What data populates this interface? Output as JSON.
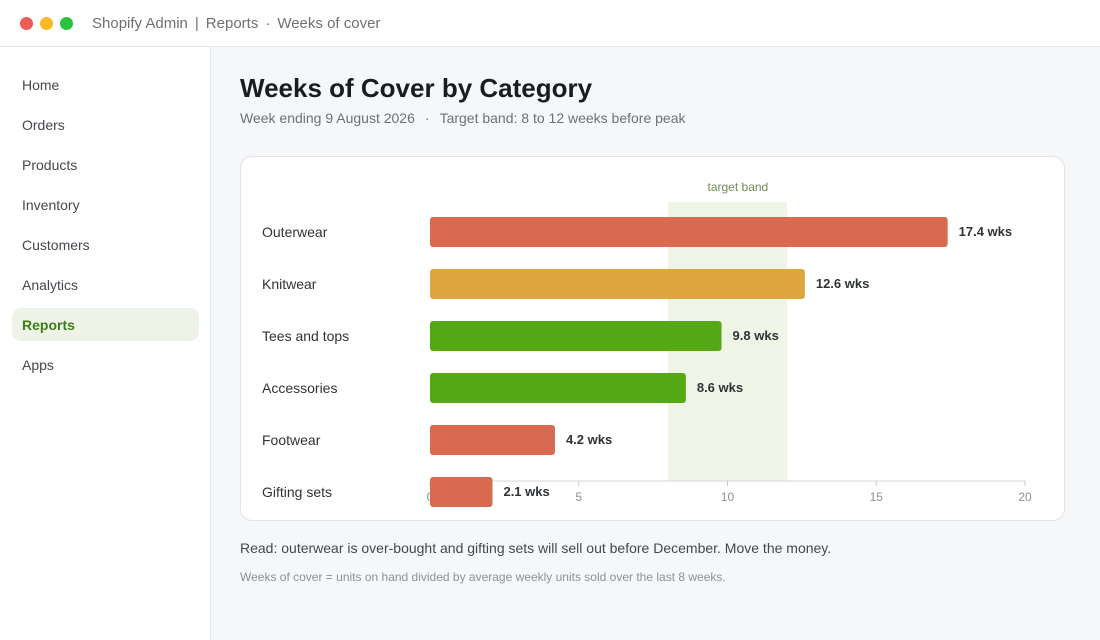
{
  "window": {
    "app": "Shopify Admin",
    "separator": "|",
    "section": "Reports",
    "dot": "·",
    "page": "Weeks of cover"
  },
  "sidebar": {
    "items": [
      {
        "label": "Home",
        "active": false
      },
      {
        "label": "Orders",
        "active": false
      },
      {
        "label": "Products",
        "active": false
      },
      {
        "label": "Inventory",
        "active": false
      },
      {
        "label": "Customers",
        "active": false
      },
      {
        "label": "Analytics",
        "active": false
      },
      {
        "label": "Reports",
        "active": true
      },
      {
        "label": "Apps",
        "active": false
      }
    ]
  },
  "main": {
    "title": "Weeks of Cover by Category",
    "subtitle_date": "Week ending 9 August 2026",
    "subtitle_dot": "·",
    "subtitle_band": "Target band: 8 to 12 weeks before peak",
    "read_note": "Read: outerwear is over-bought and gifting sets will sell out before December. Move the money.",
    "footnote": "Weeks of cover = units on hand divided by average weekly units sold over the last 8 weeks."
  },
  "chart_data": {
    "type": "bar",
    "orientation": "horizontal",
    "categories": [
      "Outerwear",
      "Knitwear",
      "Tees and tops",
      "Accessories",
      "Footwear",
      "Gifting sets"
    ],
    "values": [
      17.4,
      12.6,
      9.8,
      8.6,
      4.2,
      2.1
    ],
    "data_labels": [
      "17.4 wks",
      "12.6 wks",
      "9.8 wks",
      "8.6 wks",
      "4.2 wks",
      "2.1 wks"
    ],
    "bar_colors": [
      "#d96a52",
      "#dfa63d",
      "#55a915",
      "#55a915",
      "#d96a52",
      "#d96a52"
    ],
    "xlim": [
      0,
      20
    ],
    "xticks": [
      0,
      5,
      10,
      15,
      20
    ],
    "band": {
      "from": 8,
      "to": 12,
      "label": "target band",
      "color": "#eef5e6",
      "label_color": "#6e8c55"
    },
    "grid": false
  }
}
